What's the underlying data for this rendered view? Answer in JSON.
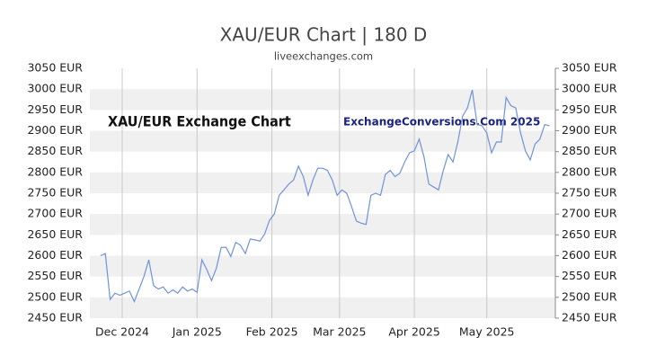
{
  "chart_data": {
    "type": "line",
    "title": "XAU/EUR Chart | 180 D",
    "subtitle": "liveexchanges.com",
    "annotation": "XAU/EUR Exchange Chart",
    "watermark": "ExchangeConversions.Com 2025",
    "color": "#6f93dc",
    "values": [
      2600,
      2605,
      2495,
      2510,
      2505,
      2510,
      2515,
      2490,
      2520,
      2550,
      2590,
      2528,
      2520,
      2525,
      2510,
      2518,
      2510,
      2525,
      2515,
      2520,
      2512,
      2590,
      2567,
      2540,
      2570,
      2620,
      2620,
      2598,
      2632,
      2625,
      2605,
      2640,
      2638,
      2635,
      2652,
      2685,
      2700,
      2745,
      2758,
      2772,
      2782,
      2815,
      2790,
      2745,
      2782,
      2810,
      2810,
      2805,
      2782,
      2745,
      2758,
      2750,
      2718,
      2683,
      2678,
      2675,
      2745,
      2750,
      2745,
      2795,
      2805,
      2790,
      2798,
      2825,
      2847,
      2852,
      2880,
      2837,
      2772,
      2765,
      2758,
      2805,
      2843,
      2825,
      2873,
      2935,
      2955,
      2998,
      2915,
      2912,
      2895,
      2847,
      2873,
      2873,
      2980,
      2960,
      2955,
      2895,
      2852,
      2830,
      2868,
      2880,
      2915,
      2912
    ],
    "xlim": [
      -2.2,
      94.2
    ],
    "xticks": [
      {
        "value": 4.5,
        "label": "Dec 2024"
      },
      {
        "value": 20,
        "label": "Jan 2025"
      },
      {
        "value": 35.5,
        "label": "Feb 2025"
      },
      {
        "value": 49.5,
        "label": "Mar 2025"
      },
      {
        "value": 65,
        "label": "Apr 2025"
      },
      {
        "value": 80,
        "label": "May 2025"
      }
    ],
    "ylim": [
      2450,
      3050
    ],
    "yticks": [
      {
        "value": 3050,
        "label": "3050 EUR"
      },
      {
        "value": 3000,
        "label": "3000 EUR"
      },
      {
        "value": 2950,
        "label": "2950 EUR"
      },
      {
        "value": 2900,
        "label": "2900 EUR"
      },
      {
        "value": 2850,
        "label": "2850 EUR"
      },
      {
        "value": 2800,
        "label": "2800 EUR"
      },
      {
        "value": 2750,
        "label": "2750 EUR"
      },
      {
        "value": 2700,
        "label": "2700 EUR"
      },
      {
        "value": 2650,
        "label": "2650 EUR"
      },
      {
        "value": 2600,
        "label": "2600 EUR"
      },
      {
        "value": 2550,
        "label": "2550 EUR"
      },
      {
        "value": 2500,
        "label": "2500 EUR"
      },
      {
        "value": 2450,
        "label": "2450 EUR"
      }
    ],
    "grid": true
  }
}
